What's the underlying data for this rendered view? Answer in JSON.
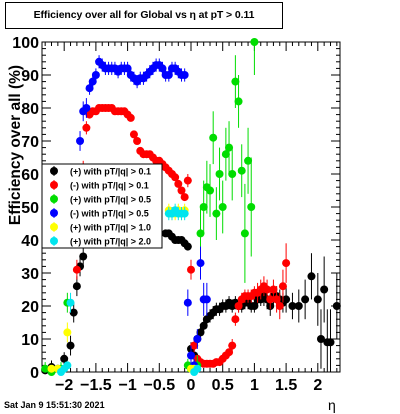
{
  "title": "Efficiency over all for Global vs   η at pT > 0.11",
  "footer_text": "Sat Jan  9 15:51:30 2021",
  "chart_data": {
    "type": "scatter",
    "title": "Efficiency over all for Global vs   η at pT > 0.11",
    "xlabel": "η",
    "ylabel": "Efficiency over all (%)",
    "xlim": [
      -2.35,
      2.35
    ],
    "ylim": [
      0,
      100
    ],
    "xticks": [
      -2,
      -1.5,
      -1,
      -0.5,
      0,
      0.5,
      1,
      1.5,
      2
    ],
    "xtick_labels": [
      "−2",
      "−1.5",
      "−1",
      "−0.5",
      "0",
      "0.5",
      "1",
      "1.5",
      "2"
    ],
    "yticks": [
      0,
      10,
      20,
      30,
      40,
      50,
      60,
      70,
      80,
      90,
      100
    ],
    "ytick_labels": [
      "0",
      "10",
      "20",
      "30",
      "40",
      "50",
      "60",
      "70",
      "80",
      "90",
      "100"
    ],
    "legend_position": "left-middle",
    "series": [
      {
        "name": "(+) with pT/|q| > 0.1",
        "color": "#000000",
        "x": [
          -2.3,
          -2.2,
          -2.1,
          -2.0,
          -1.9,
          -1.85,
          -1.8,
          -1.75,
          -1.7,
          -0.4,
          -0.35,
          -0.3,
          -0.25,
          -0.2,
          -0.15,
          -0.1,
          -0.05,
          0.0,
          0.05,
          0.1,
          0.15,
          0.2,
          0.25,
          0.3,
          0.35,
          0.4,
          0.45,
          0.5,
          0.55,
          0.6,
          0.65,
          0.7,
          0.75,
          0.8,
          0.85,
          0.9,
          0.95,
          1.0,
          1.05,
          1.1,
          1.15,
          1.2,
          1.25,
          1.3,
          1.35,
          1.4,
          1.45,
          1.5,
          1.6,
          1.7,
          1.8,
          1.9,
          2.0,
          2.05,
          2.1,
          2.15,
          2.2,
          2.3
        ],
        "y": [
          0.5,
          1.5,
          1.0,
          4,
          8,
          18,
          26,
          32,
          35,
          42,
          42,
          41,
          40,
          40,
          40,
          39,
          38,
          7,
          5,
          10,
          12,
          14,
          16,
          17,
          18,
          19,
          19,
          20,
          20,
          21,
          20,
          21,
          20,
          20,
          21,
          21,
          20,
          20,
          22,
          22,
          23,
          22,
          20,
          23,
          23,
          22,
          21,
          22,
          20,
          20,
          22,
          29,
          22,
          10,
          25,
          9,
          9,
          20
        ],
        "yerr": [
          1,
          2,
          1,
          2,
          3,
          3,
          3,
          3,
          3,
          1,
          1,
          1,
          1,
          1,
          1,
          1,
          1,
          2,
          2,
          2,
          2,
          2,
          2,
          2,
          2,
          2,
          2,
          2,
          2,
          2,
          2,
          2,
          2,
          2,
          2,
          2,
          2,
          2,
          2,
          2,
          3,
          3,
          3,
          3,
          3,
          3,
          3,
          4,
          4,
          5,
          6,
          7,
          8,
          9,
          10,
          10,
          10,
          10
        ]
      },
      {
        "name": "(-) with pT/|q| > 0.1",
        "color": "#ff0000",
        "x": [
          -1.8,
          -1.75,
          -1.7,
          -1.65,
          -1.6,
          -1.55,
          -1.5,
          -1.45,
          -1.4,
          -1.35,
          -1.3,
          -1.25,
          -1.2,
          -1.15,
          -1.1,
          -1.05,
          -1.0,
          -0.95,
          -0.9,
          -0.85,
          -0.8,
          -0.75,
          -0.7,
          -0.65,
          -0.6,
          -0.55,
          -0.5,
          -0.45,
          -0.4,
          -0.35,
          -0.3,
          -0.25,
          -0.2,
          -0.15,
          -0.1,
          -0.05,
          0.0,
          0.05,
          0.1,
          0.15,
          0.2,
          0.25,
          0.3,
          0.35,
          0.4,
          0.45,
          0.5,
          0.55,
          0.6,
          0.65,
          0.7,
          0.75,
          0.8,
          0.85,
          0.9,
          0.95,
          1.0,
          1.05,
          1.1,
          1.15,
          1.2,
          1.25,
          1.3,
          1.35,
          1.4,
          1.45,
          1.5
        ],
        "y": [
          31,
          47,
          62,
          74,
          78,
          79,
          79,
          80,
          80,
          80,
          80,
          80,
          79,
          79,
          79,
          79,
          78,
          77,
          72,
          70,
          67,
          66,
          66,
          66,
          65,
          64,
          64,
          63,
          62,
          61,
          60,
          59,
          57,
          55,
          53,
          58,
          31,
          8,
          4,
          3,
          2.5,
          2.5,
          2.5,
          2.5,
          3,
          3,
          4,
          5,
          6,
          8,
          16,
          20,
          22,
          23,
          23,
          23,
          24,
          24,
          25,
          26,
          25,
          22,
          25,
          22,
          20,
          26,
          33
        ],
        "yerr": [
          3,
          3,
          2,
          2,
          1,
          1,
          1,
          1,
          1,
          1,
          1,
          1,
          1,
          1,
          1,
          1,
          1,
          1,
          1,
          1,
          1,
          1,
          1,
          1,
          1,
          1,
          1,
          1,
          1,
          1,
          1,
          1,
          1,
          1,
          1,
          2,
          3,
          2,
          1,
          1,
          1,
          1,
          1,
          1,
          1,
          1,
          1,
          1,
          1,
          2,
          2,
          2,
          2,
          2,
          2,
          2,
          2,
          3,
          3,
          3,
          3,
          3,
          3,
          4,
          4,
          5,
          6
        ]
      },
      {
        "name": "(+) with pT/|q| > 0.5",
        "color": "#00dd00",
        "x": [
          -2.3,
          -2.2,
          -2.05,
          -1.95,
          -0.05,
          0.0,
          0.05,
          0.1,
          0.15,
          0.2,
          0.25,
          0.3,
          0.35,
          0.4,
          0.45,
          0.5,
          0.55,
          0.6,
          0.65,
          0.7,
          0.75,
          0.8,
          0.85,
          0.9,
          0.95,
          1.0
        ],
        "y": [
          1,
          0,
          1,
          21,
          2,
          1,
          1,
          2,
          42,
          50,
          56,
          55,
          71,
          48,
          60,
          50,
          66,
          68,
          60,
          88,
          82,
          61,
          42,
          64,
          50,
          100
        ],
        "yerr": [
          2,
          1,
          2,
          3,
          2,
          2,
          2,
          3,
          8,
          8,
          8,
          8,
          8,
          8,
          8,
          8,
          8,
          8,
          8,
          8,
          8,
          8,
          15,
          10,
          15,
          10
        ]
      },
      {
        "name": "(-) with pT/|q| > 0.5",
        "color": "#0000ff",
        "x": [
          -1.75,
          -1.7,
          -1.65,
          -1.6,
          -1.55,
          -1.5,
          -1.45,
          -1.4,
          -1.35,
          -1.3,
          -1.25,
          -1.2,
          -1.15,
          -1.1,
          -1.05,
          -1.0,
          -0.95,
          -0.9,
          -0.85,
          -0.8,
          -0.75,
          -0.7,
          -0.65,
          -0.6,
          -0.55,
          -0.5,
          -0.45,
          -0.4,
          -0.35,
          -0.3,
          -0.25,
          -0.2,
          -0.15,
          -0.1,
          -0.05,
          0.0,
          0.05,
          0.1,
          0.15,
          0.2,
          0.25
        ],
        "y": [
          70,
          79,
          80,
          86,
          88,
          90,
          94,
          93,
          92,
          92,
          92,
          92,
          91,
          92,
          92,
          92,
          90,
          89,
          88,
          89,
          89,
          90,
          91,
          92,
          93,
          93,
          92,
          90,
          90,
          92,
          92,
          91,
          90,
          90,
          21,
          5,
          2,
          10,
          33,
          22,
          22
        ],
        "yerr": [
          3,
          3,
          3,
          2,
          2,
          2,
          2,
          2,
          2,
          2,
          2,
          2,
          2,
          2,
          2,
          2,
          2,
          2,
          2,
          2,
          2,
          2,
          2,
          2,
          2,
          2,
          2,
          2,
          2,
          2,
          2,
          2,
          2,
          2,
          4,
          3,
          2,
          3,
          5,
          5,
          5
        ]
      },
      {
        "name": "(+) with pT/|q| > 1.0",
        "color": "#ffff00",
        "x": [
          -2.2,
          -2.1,
          -1.95,
          -0.35,
          -0.3,
          -0.25,
          -0.2,
          -0.15,
          -0.1,
          0.0,
          0.05
        ],
        "y": [
          1,
          1,
          12,
          49,
          48,
          48,
          49,
          48,
          49,
          1,
          1
        ],
        "yerr": [
          1,
          1,
          3,
          2,
          2,
          2,
          2,
          2,
          2,
          1,
          1
        ]
      },
      {
        "name": "(+) with pT/|q| > 2.0",
        "color": "#00e5ee",
        "x": [
          -2.05,
          -2.0,
          -1.95,
          -1.9,
          -0.35,
          -0.3,
          -0.25,
          -0.2,
          -0.15,
          -0.1,
          0.05,
          0.1
        ],
        "y": [
          0,
          1,
          2,
          21,
          48,
          48,
          49,
          48,
          48,
          48,
          0,
          1
        ],
        "yerr": [
          1,
          1,
          1,
          3,
          2,
          2,
          2,
          2,
          2,
          2,
          1,
          1
        ]
      }
    ]
  }
}
